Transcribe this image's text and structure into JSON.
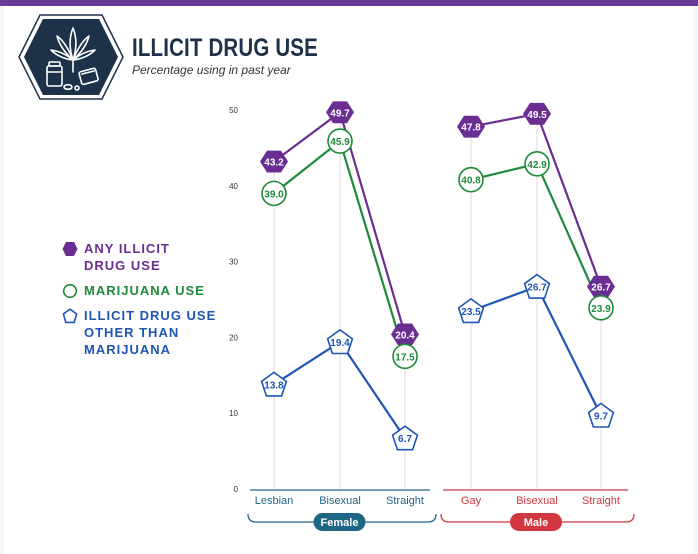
{
  "header": {
    "title": "ILLICIT DRUG USE",
    "subtitle": "Percentage using in past year"
  },
  "legend": {
    "items": [
      {
        "lines": [
          "ANY ILLICIT",
          "DRUG USE"
        ],
        "marker": "hexagon-filled",
        "color": "#6a2d91"
      },
      {
        "lines": [
          "MARIJUANA USE"
        ],
        "marker": "circle-outline",
        "color": "#1e8a3a"
      },
      {
        "lines": [
          "ILLICIT DRUG USE",
          "OTHER THAN",
          "MARIJUANA"
        ],
        "marker": "pentagon-outline",
        "color": "#1f56b3"
      }
    ]
  },
  "chart_data": {
    "type": "line",
    "ylim": [
      0,
      50
    ],
    "yticks": [
      0,
      10,
      20,
      30,
      40,
      50
    ],
    "grid": false,
    "legend_position": "left",
    "groups": [
      {
        "name": "Female",
        "color": "#1f6685",
        "categories": [
          "Lesbian",
          "Bisexual",
          "Straight"
        ],
        "series": [
          {
            "name": "ANY ILLICIT DRUG USE",
            "values": [
              43.2,
              49.7,
              20.4
            ],
            "color": "#6a2d91"
          },
          {
            "name": "MARIJUANA USE",
            "values": [
              39.0,
              45.9,
              17.5
            ],
            "color": "#1e8a3a"
          },
          {
            "name": "ILLICIT DRUG USE OTHER THAN MARIJUANA",
            "values": [
              13.8,
              19.4,
              6.7
            ],
            "color": "#1f56b3"
          }
        ]
      },
      {
        "name": "Male",
        "color": "#d2373f",
        "categories": [
          "Gay",
          "Bisexual",
          "Straight"
        ],
        "series": [
          {
            "name": "ANY ILLICIT DRUG USE",
            "values": [
              47.8,
              49.5,
              26.7
            ],
            "color": "#6a2d91"
          },
          {
            "name": "MARIJUANA USE",
            "values": [
              40.8,
              42.9,
              23.9
            ],
            "color": "#1e8a3a"
          },
          {
            "name": "ILLICIT DRUG USE OTHER THAN MARIJUANA",
            "values": [
              23.5,
              26.7,
              9.7
            ],
            "color": "#1f56b3"
          }
        ]
      }
    ]
  }
}
